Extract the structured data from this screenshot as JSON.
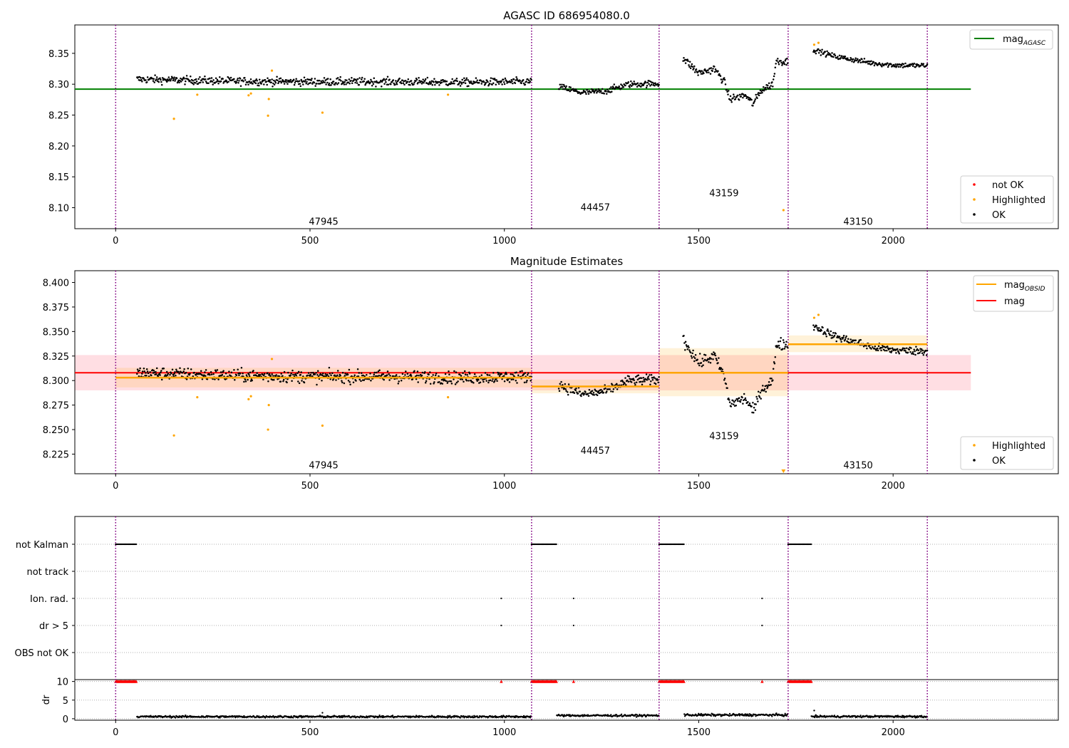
{
  "chart_data": [
    {
      "type": "scatter",
      "title": "AGASC ID 686954080.0",
      "xlim": [
        -105,
        2425
      ],
      "ylim": [
        8.066,
        8.396
      ],
      "xticks": [
        0,
        500,
        1000,
        1500,
        2000
      ],
      "xtick_labels": [
        "0",
        "500",
        "1000",
        "1500",
        "2000"
      ],
      "yticks": [
        8.1,
        8.15,
        8.2,
        8.25,
        8.3,
        8.35
      ],
      "ytick_labels": [
        "8.10",
        "8.15",
        "8.20",
        "8.25",
        "8.30",
        "8.35"
      ],
      "obsid_boundaries": [
        0,
        1070,
        1398,
        1730,
        2088
      ],
      "obsid_labels": [
        {
          "text": "47945",
          "x": 535,
          "y": 8.078
        },
        {
          "text": "44457",
          "x": 1234,
          "y": 8.101
        },
        {
          "text": "43159",
          "x": 1565,
          "y": 8.124
        },
        {
          "text": "43150",
          "x": 1910,
          "y": 8.078
        }
      ],
      "segments": [
        {
          "x_start": 55,
          "x_end": 1070,
          "levels": [
            [
              55,
              8.308
            ],
            [
              300,
              8.305
            ],
            [
              500,
              8.304
            ],
            [
              700,
              8.304
            ],
            [
              900,
              8.303
            ],
            [
              1070,
              8.304
            ]
          ],
          "noise": 0.006
        },
        {
          "x_start": 1140,
          "x_end": 1398,
          "levels": [
            [
              1140,
              8.296
            ],
            [
              1200,
              8.286
            ],
            [
              1260,
              8.289
            ],
            [
              1320,
              8.3
            ],
            [
              1398,
              8.301
            ]
          ],
          "noise": 0.005
        },
        {
          "x_start": 1460,
          "x_end": 1730,
          "levels": [
            [
              1460,
              8.342
            ],
            [
              1500,
              8.318
            ],
            [
              1540,
              8.325
            ],
            [
              1565,
              8.305
            ],
            [
              1580,
              8.276
            ],
            [
              1620,
              8.282
            ],
            [
              1640,
              8.268
            ],
            [
              1660,
              8.29
            ],
            [
              1690,
              8.3
            ],
            [
              1700,
              8.338
            ],
            [
              1730,
              8.336
            ]
          ],
          "noise": 0.006
        },
        {
          "x_start": 1795,
          "x_end": 2088,
          "levels": [
            [
              1795,
              8.356
            ],
            [
              1850,
              8.345
            ],
            [
              1950,
              8.334
            ],
            [
              2000,
              8.331
            ],
            [
              2088,
              8.33
            ]
          ],
          "noise": 0.004
        }
      ],
      "series": [
        {
          "name": "not OK",
          "color": "#ff0000",
          "points": []
        },
        {
          "name": "Highlighted",
          "color": "#ffa500",
          "points": [
            [
              150,
              8.244
            ],
            [
              210,
              8.283
            ],
            [
              342,
              8.282
            ],
            [
              348,
              8.285
            ],
            [
              392,
              8.249
            ],
            [
              394,
              8.276
            ],
            [
              402,
              8.322
            ],
            [
              532,
              8.254
            ],
            [
              855,
              8.283
            ],
            [
              1718,
              8.096
            ],
            [
              1797,
              8.364
            ],
            [
              1808,
              8.367
            ]
          ]
        },
        {
          "name": "OK",
          "color": "#000000",
          "points": "segments"
        }
      ],
      "lines": [
        {
          "name": "mag_AGASC",
          "legend_label": "mag",
          "legend_sub": "AGASC",
          "color": "#008000",
          "y": 8.292,
          "x_start": -105,
          "x_end": 2200
        }
      ],
      "legend_upper": "upper right",
      "legend_lower": "lower right"
    },
    {
      "type": "scatter",
      "title": "Magnitude Estimates",
      "xlim": [
        -105,
        2425
      ],
      "ylim": [
        8.205,
        8.412
      ],
      "xticks": [
        0,
        500,
        1000,
        1500,
        2000
      ],
      "xtick_labels": [
        "0",
        "500",
        "1000",
        "1500",
        "2000"
      ],
      "yticks": [
        8.225,
        8.25,
        8.275,
        8.3,
        8.325,
        8.35,
        8.375,
        8.4
      ],
      "ytick_labels": [
        "8.225",
        "8.250",
        "8.275",
        "8.300",
        "8.325",
        "8.350",
        "8.375",
        "8.400"
      ],
      "obsid_boundaries": [
        0,
        1070,
        1398,
        1730,
        2088
      ],
      "obsid_labels": [
        {
          "text": "47945",
          "x": 535,
          "y": 8.214
        },
        {
          "text": "44457",
          "x": 1234,
          "y": 8.229
        },
        {
          "text": "43159",
          "x": 1565,
          "y": 8.244
        },
        {
          "text": "43150",
          "x": 1910,
          "y": 8.214
        }
      ],
      "mag": {
        "name": "mag",
        "color": "#ff0000",
        "y": 8.308,
        "band": [
          8.29,
          8.326
        ],
        "band_color": "#ffb6c1",
        "x_start": -105,
        "x_end": 2200
      },
      "mag_obsid": [
        {
          "x_start": 0,
          "x_end": 1070,
          "y": 8.303,
          "band": [
            8.293,
            8.313
          ]
        },
        {
          "x_start": 1070,
          "x_end": 1398,
          "y": 8.294,
          "band": [
            8.287,
            8.301
          ]
        },
        {
          "x_start": 1398,
          "x_end": 1730,
          "y": 8.308,
          "band": [
            8.284,
            8.333
          ]
        },
        {
          "x_start": 1730,
          "x_end": 2088,
          "y": 8.337,
          "band": [
            8.329,
            8.346
          ]
        }
      ],
      "mag_obsid_color": "#ffa500",
      "series": [
        {
          "name": "Highlighted",
          "color": "#ffa500",
          "points": [
            [
              150,
              8.244
            ],
            [
              210,
              8.283
            ],
            [
              342,
              8.281
            ],
            [
              348,
              8.284
            ],
            [
              392,
              8.25
            ],
            [
              394,
              8.275
            ],
            [
              402,
              8.322
            ],
            [
              532,
              8.254
            ],
            [
              855,
              8.283
            ],
            [
              1797,
              8.364
            ],
            [
              1808,
              8.367
            ]
          ]
        },
        {
          "name": "OK",
          "color": "#000000",
          "points": "segments"
        }
      ],
      "offscale_marker": {
        "x": 1718,
        "color": "#ffa500"
      },
      "legend_labels": [
        {
          "text": "mag",
          "sub": "OBSID",
          "color": "#ffa500"
        },
        {
          "text": "mag",
          "sub": "",
          "color": "#ff0000"
        }
      ]
    },
    {
      "type": "scatter",
      "title": "",
      "xlim": [
        -105,
        2425
      ],
      "xticks": [
        0,
        500,
        1000,
        1500,
        2000
      ],
      "xtick_labels": [
        "0",
        "500",
        "1000",
        "1500",
        "2000"
      ],
      "obsid_boundaries": [
        0,
        1070,
        1398,
        1730,
        2088
      ],
      "flag_rows": [
        "not Kalman",
        "not track",
        "Ion. rad.",
        "dr > 5",
        "OBS not OK"
      ],
      "flag_points": {
        "not Kalman": [
          [
            0,
            55
          ],
          [
            1070,
            1135
          ],
          [
            1398,
            1463
          ],
          [
            1730,
            1790
          ]
        ],
        "not track": [],
        "Ion. rad.": [
          992,
          1178,
          1663
        ],
        "dr > 5": [
          992,
          1178,
          1663
        ],
        "OBS not OK": []
      },
      "dr": {
        "ylabel": "dr",
        "ylim": [
          -0.4,
          10.5
        ],
        "yticks": [
          0,
          5,
          10
        ],
        "ytick_labels": [
          "0",
          "5",
          "10"
        ],
        "clipped_value": 10,
        "clipped_color": "#ff0000",
        "clipped_ranges": [
          [
            0,
            55
          ],
          [
            1070,
            1135
          ],
          [
            1398,
            1463
          ],
          [
            1730,
            1790
          ]
        ],
        "clipped_singles": [
          992,
          1178,
          1663
        ],
        "segments": [
          {
            "x_start": 55,
            "x_end": 1070,
            "mean": 0.55,
            "noise": 0.25
          },
          {
            "x_start": 1135,
            "x_end": 1398,
            "mean": 0.85,
            "noise": 0.25
          },
          {
            "x_start": 1463,
            "x_end": 1730,
            "mean": 1.0,
            "noise": 0.3
          },
          {
            "x_start": 1790,
            "x_end": 2088,
            "mean": 0.6,
            "noise": 0.25
          }
        ],
        "spikes": [
          [
            532,
            1.6
          ],
          [
            1797,
            2.2
          ]
        ]
      }
    }
  ]
}
